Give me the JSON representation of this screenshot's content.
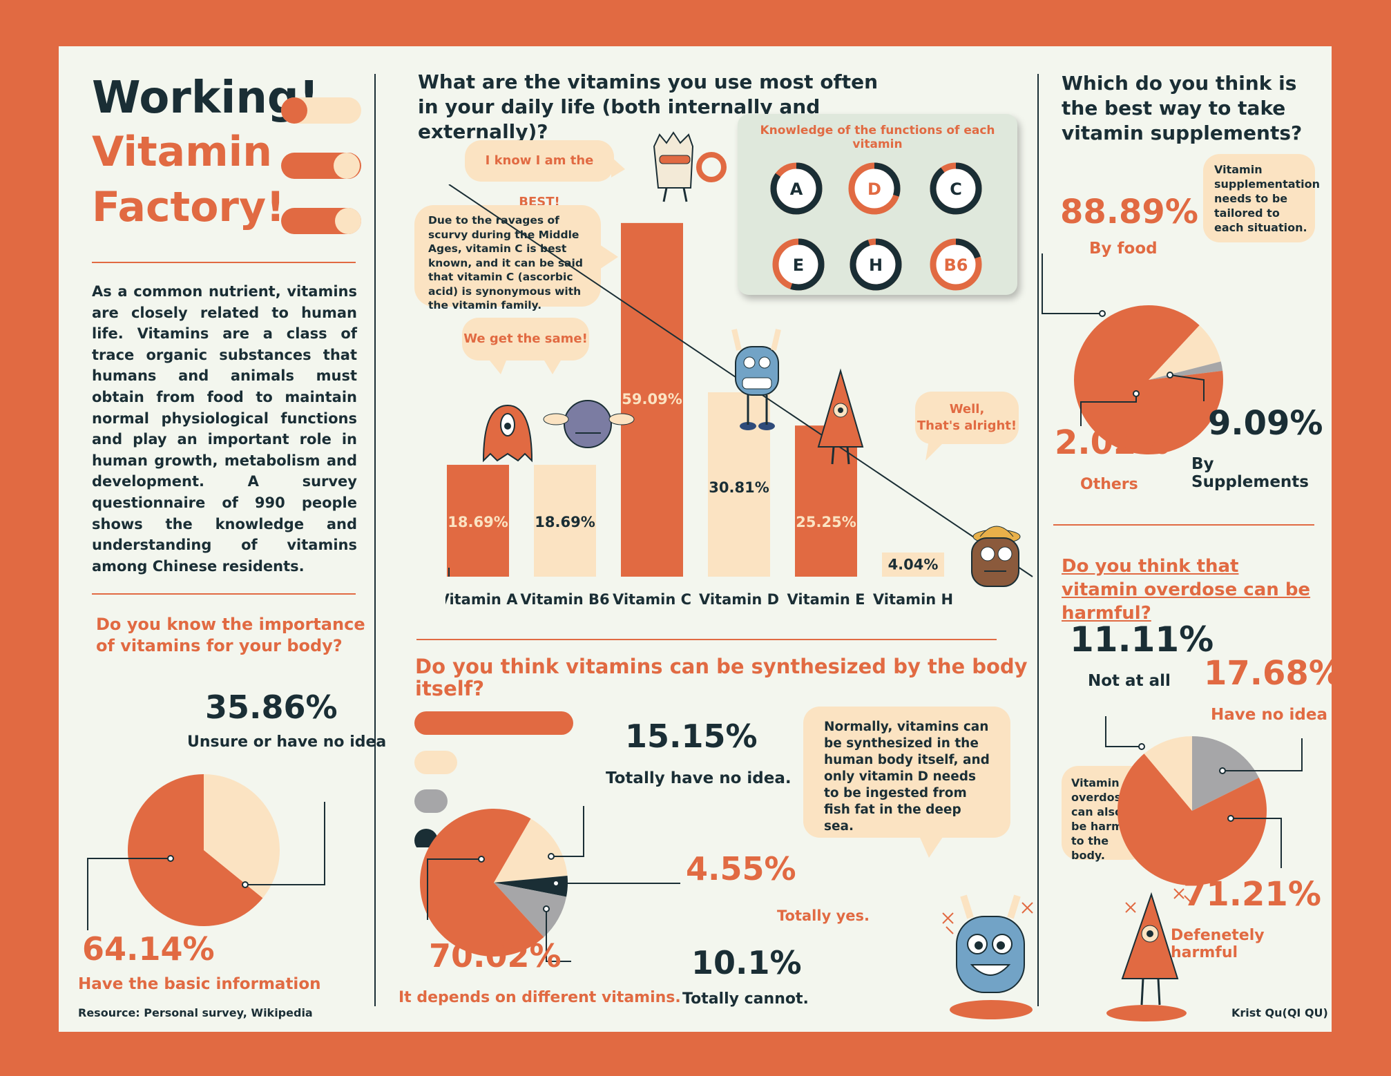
{
  "title": {
    "line1": "Working!",
    "line2": "Vitamin",
    "line3": "Factory!"
  },
  "intro": "As a common nutrient, vitamins are closely related to human life. Vitamins are a class of trace organic substances that humans and animals must obtain from food to maintain normal physiological functions and play an important role in human growth, metabolism and development. A survey questionnaire of 990 people shows the knowledge and understanding of vitamins among Chinese residents.",
  "source": "Resource: Personal survey, Wikipedia",
  "credit": "Krist Qu(QI QU)",
  "colors": {
    "orange": "#e16a42",
    "navy": "#1a2e35",
    "cream": "#fbe3c2",
    "grey": "#a6a6a8",
    "bg": "#f3f6ee"
  },
  "chart_data": [
    {
      "type": "bar",
      "title": "What are the vitamins you use most often in your daily life (both internally and externally)?",
      "categories": [
        "Vitamin A",
        "Vitamin B6",
        "Vitamin C",
        "Vitamin D",
        "Vitamin E",
        "Vitamin H"
      ],
      "values": [
        18.69,
        18.69,
        59.09,
        30.81,
        25.25,
        4.04
      ],
      "labels": [
        "18.69%",
        "18.69%",
        "59.09%",
        "30.81%",
        "25.25%",
        "4.04%"
      ],
      "bar_colors": [
        "#e16a42",
        "#fbe3c2",
        "#e16a42",
        "#fbe3c2",
        "#e16a42",
        "#fbe3c2"
      ],
      "ylim": [
        0,
        60
      ]
    },
    {
      "type": "pie",
      "title": "Do you know the importance of vitamins for your body?",
      "slices": [
        {
          "label": "Have the basic information",
          "value": 64.14,
          "text": "64.14%",
          "color": "#e16a42"
        },
        {
          "label": "Unsure or have no idea",
          "value": 35.86,
          "text": "35.86%",
          "color": "#fbe3c2"
        }
      ]
    },
    {
      "type": "pie",
      "title": "Do you think vitamins can be synthesized by the body itself?",
      "slices": [
        {
          "label": "Totally have no idea.",
          "value": 15.15,
          "text": "15.15%",
          "color": "#fbe3c2"
        },
        {
          "label": "Totally yes.",
          "value": 4.55,
          "text": "4.55%",
          "color": "#1a2e35"
        },
        {
          "label": "Totally cannot.",
          "value": 10.1,
          "text": "10.1%",
          "color": "#a6a6a8"
        },
        {
          "label": "It depends on different vitamins.",
          "value": 70.02,
          "text": "70.02%",
          "color": "#e16a42"
        }
      ]
    },
    {
      "type": "pie",
      "title": "Which do you think is the best way to take vitamin supplements?",
      "slices": [
        {
          "label": "By food",
          "value": 88.89,
          "text": "88.89%",
          "color": "#e16a42"
        },
        {
          "label": "By Supplements",
          "value": 9.09,
          "text": "9.09%",
          "color": "#fbe3c2"
        },
        {
          "label": "Others",
          "value": 2.02,
          "text": "2.02%",
          "color": "#a6a6a8"
        }
      ]
    },
    {
      "type": "pie",
      "title": "Do you think that vitamin overdose can be harmful?",
      "slices": [
        {
          "label": "Have no idea",
          "value": 17.68,
          "text": "17.68%",
          "color": "#a6a6a8"
        },
        {
          "label": "Defenetely harmful",
          "value": 71.21,
          "text": "71.21%",
          "color": "#e16a42"
        },
        {
          "label": "Not at all",
          "value": 11.11,
          "text": "11.11%",
          "color": "#fbe3c2"
        }
      ]
    }
  ],
  "knowledge": {
    "title": "Knowledge of the functions of each vitamin",
    "items": [
      {
        "letter": "A",
        "fill": 0.85
      },
      {
        "letter": "D",
        "fill": 0.3
      },
      {
        "letter": "C",
        "fill": 0.9
      },
      {
        "letter": "E",
        "fill": 0.55
      },
      {
        "letter": "H",
        "fill": 0.95
      },
      {
        "letter": "B6",
        "fill": 0.2
      }
    ]
  },
  "bubbles": {
    "best": "I know I am the BEST!",
    "scurvy": "Due to the ravages of scurvy during the Middle Ages, vitamin C is best known, and it can be said that vitamin C (ascorbic acid) is synonymous with the vitamin family.",
    "same": "We get the same!",
    "alright_1": "Well,",
    "alright_2": "That's alright!",
    "synth": "Normally, vitamins can be synthesized in the human body itself, and only vitamin D needs to be ingested from fish fat in the deep sea.",
    "tailored": "Vitamin supplementation needs to be tailored to each situation.",
    "overdose": "Vitamin overdose can also be harmful to the body."
  }
}
